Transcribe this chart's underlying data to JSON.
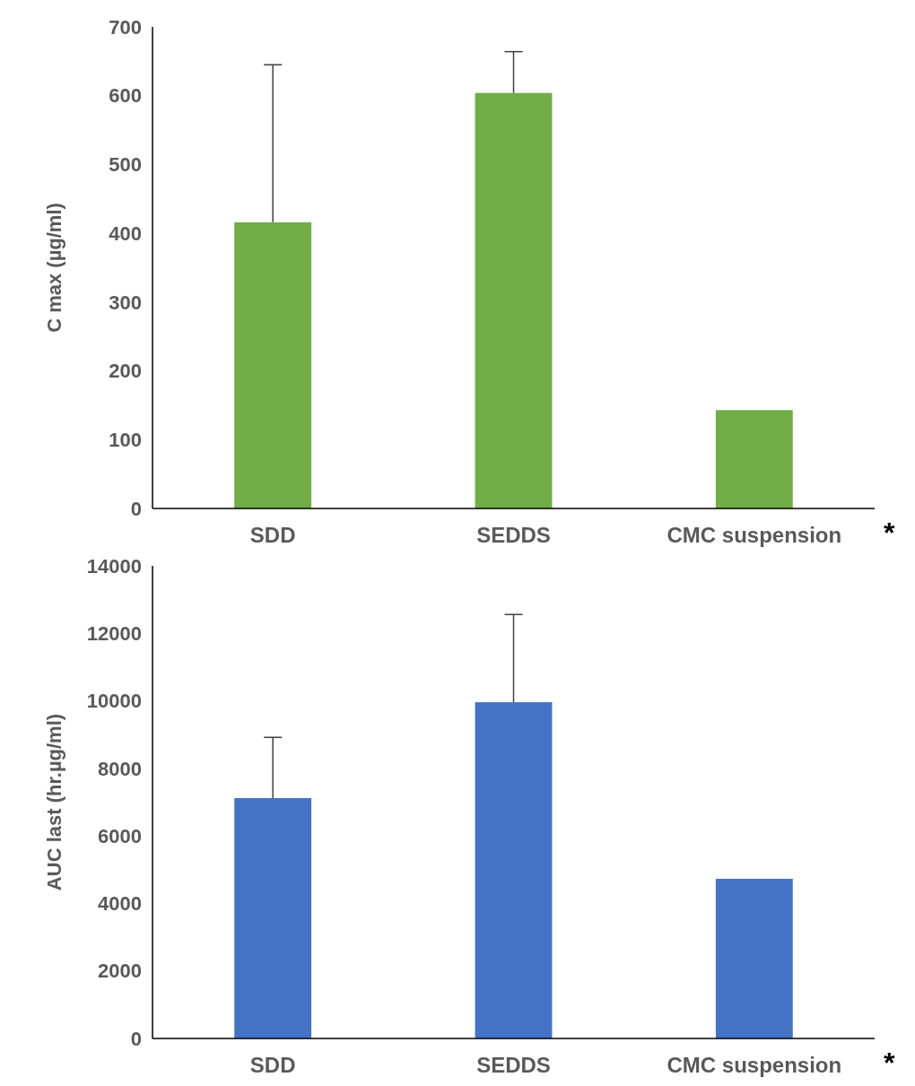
{
  "chart_data": [
    {
      "type": "bar",
      "ylabel": "C max (µg/ml)",
      "categories": [
        "SDD",
        "SEDDS",
        "CMC suspension"
      ],
      "values": [
        416,
        604,
        143
      ],
      "color": "#70ad47",
      "errors": [
        [
          416,
          645
        ],
        [
          604,
          664
        ],
        null
      ],
      "ylim": [
        0,
        700
      ],
      "yticks": [
        0,
        100,
        200,
        300,
        400,
        500,
        600,
        700
      ],
      "grid": false,
      "annotations": [
        "*"
      ]
    },
    {
      "type": "bar",
      "ylabel": "AUC last (hr.µg/ml)",
      "categories": [
        "SDD",
        "SEDDS",
        "CMC suspension"
      ],
      "values": [
        7120,
        9960,
        4730
      ],
      "color": "#4472c4",
      "errors": [
        [
          7120,
          8920
        ],
        [
          9960,
          12560
        ],
        null
      ],
      "ylim": [
        0,
        14000
      ],
      "yticks": [
        0,
        2000,
        4000,
        6000,
        8000,
        10000,
        12000,
        14000
      ],
      "grid": false,
      "annotations": [
        "*"
      ]
    }
  ]
}
